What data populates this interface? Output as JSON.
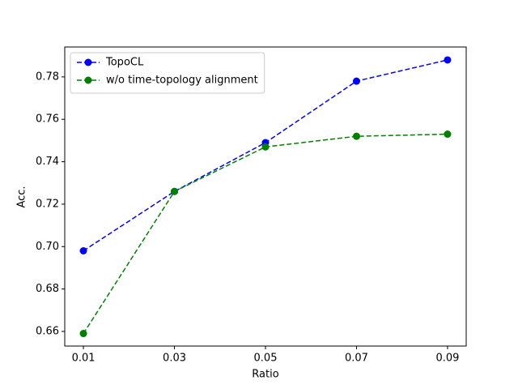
{
  "chart_data": {
    "type": "line",
    "xlabel": "Ratio",
    "ylabel": "Acc.",
    "x": [
      0.01,
      0.03,
      0.05,
      0.07,
      0.09
    ],
    "series": [
      {
        "name": "TopoCL",
        "color": "#0000ff",
        "values": [
          0.698,
          0.726,
          0.749,
          0.778,
          0.788
        ]
      },
      {
        "name": "w/o time-topology alignment",
        "color": "#008000",
        "values": [
          0.659,
          0.726,
          0.747,
          0.752,
          0.753
        ]
      }
    ],
    "xlim": [
      0.0059,
      0.0941
    ],
    "ylim": [
      0.6531,
      0.7941
    ],
    "xticks": [
      0.01,
      0.03,
      0.05,
      0.07,
      0.09
    ],
    "yticks": [
      0.66,
      0.68,
      {
        "value": 0.7,
        "label": "0.70"
      },
      0.72,
      0.74,
      0.76,
      0.78
    ],
    "legend": "upper left",
    "line_style": "dashed",
    "marker": "circle"
  }
}
